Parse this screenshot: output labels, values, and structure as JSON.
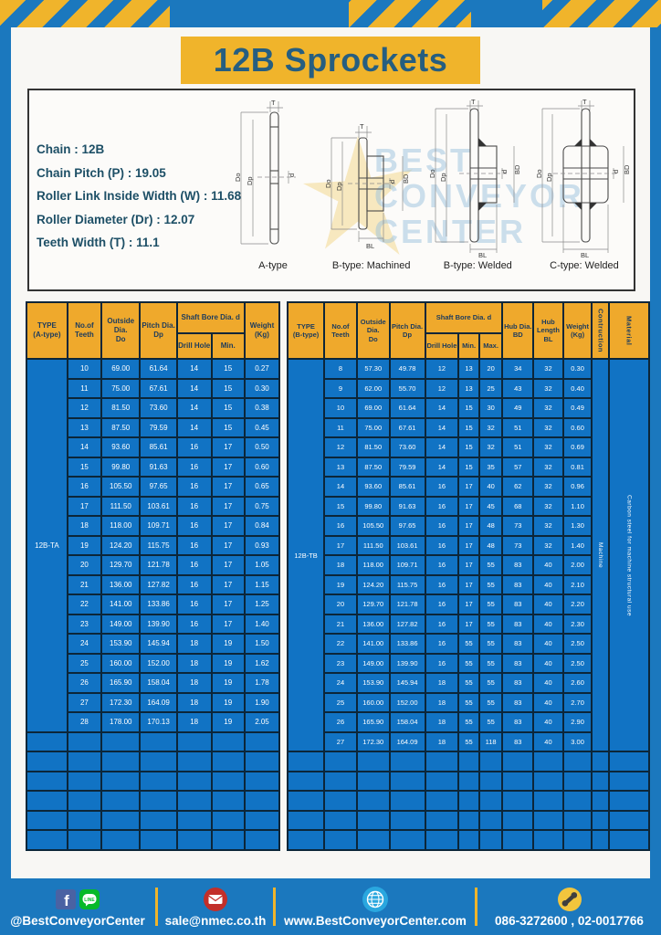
{
  "page": {
    "title": "12B Sprockets"
  },
  "colors": {
    "frame_blue": "#1b78be",
    "stripe_yellow": "#f0b42b",
    "header_yellow": "#efa92c",
    "cell_blue": "#1173c4",
    "grid_dark": "#0c2639",
    "title_text": "#265e80"
  },
  "specs": {
    "lines": [
      {
        "label": "Chain",
        "value": "12B"
      },
      {
        "label": "Chain Pitch (P)",
        "value": "19.05"
      },
      {
        "label": "Roller Link Inside Width (W)",
        "value": "11.68"
      },
      {
        "label": "Roller Diameter (Dr)",
        "value": "12.07"
      },
      {
        "label": "Teeth Width (T)",
        "value": "11.1"
      }
    ]
  },
  "watermark": {
    "lines": [
      "BEST",
      "CONVEYOR",
      "CENTER"
    ]
  },
  "diagrams": {
    "labels": [
      "A-type",
      "B-type: Machined",
      "B-type: Welded",
      "C-type: Welded"
    ],
    "dims": {
      "t": "T",
      "do": "Do",
      "dp": "Dp",
      "d": "d",
      "bd": "BD",
      "bl": "BL"
    }
  },
  "table_a": {
    "headers": {
      "type": "TYPE\n(A-type)",
      "teeth": "No.of\nTeeth",
      "outside": "Outside\nDia.\nDo",
      "pitch": "Pitch Dia.\nDp",
      "shaft_bore": "Shaft Bore Dia. d",
      "drill": "Drill Hole",
      "min": "Min.",
      "weight": "Weight\n(Kg)"
    },
    "type_value": "12B-TA",
    "rows": [
      [
        "10",
        "69.00",
        "61.64",
        "14",
        "15",
        "0.27"
      ],
      [
        "11",
        "75.00",
        "67.61",
        "14",
        "15",
        "0.30"
      ],
      [
        "12",
        "81.50",
        "73.60",
        "14",
        "15",
        "0.38"
      ],
      [
        "13",
        "87.50",
        "79.59",
        "14",
        "15",
        "0.45"
      ],
      [
        "14",
        "93.60",
        "85.61",
        "16",
        "17",
        "0.50"
      ],
      [
        "15",
        "99.80",
        "91.63",
        "16",
        "17",
        "0.60"
      ],
      [
        "16",
        "105.50",
        "97.65",
        "16",
        "17",
        "0.65"
      ],
      [
        "17",
        "111.50",
        "103.61",
        "16",
        "17",
        "0.75"
      ],
      [
        "18",
        "118.00",
        "109.71",
        "16",
        "17",
        "0.84"
      ],
      [
        "19",
        "124.20",
        "115.75",
        "16",
        "17",
        "0.93"
      ],
      [
        "20",
        "129.70",
        "121.78",
        "16",
        "17",
        "1.05"
      ],
      [
        "21",
        "136.00",
        "127.82",
        "16",
        "17",
        "1.15"
      ],
      [
        "22",
        "141.00",
        "133.86",
        "16",
        "17",
        "1.25"
      ],
      [
        "23",
        "149.00",
        "139.90",
        "16",
        "17",
        "1.40"
      ],
      [
        "24",
        "153.90",
        "145.94",
        "18",
        "19",
        "1.50"
      ],
      [
        "25",
        "160.00",
        "152.00",
        "18",
        "19",
        "1.62"
      ],
      [
        "26",
        "165.90",
        "158.04",
        "18",
        "19",
        "1.78"
      ],
      [
        "27",
        "172.30",
        "164.09",
        "18",
        "19",
        "1.90"
      ],
      [
        "28",
        "178.00",
        "170.13",
        "18",
        "19",
        "2.05"
      ]
    ],
    "empty_rows": 6
  },
  "table_b": {
    "headers": {
      "type": "TYPE\n(B-type)",
      "teeth": "No.of\nTeeth",
      "outside": "Outside\nDia.\nDo",
      "pitch": "Pitch Dia.\nDp",
      "shaft_bore": "Shaft Bore Dia. d",
      "drill": "Drill Hole",
      "min": "Min.",
      "max": "Max.",
      "hub_dia": "Hub Dia.\nBD",
      "hub_length": "Hub\nLength\nBL",
      "weight": "Weight\n(Kg)",
      "construction": "Contruction",
      "material": "Material"
    },
    "type_value": "12B-TB",
    "construction_value": "Machine",
    "material_value": "Carbon steel for machine structural use",
    "rows": [
      [
        "8",
        "57.30",
        "49.78",
        "12",
        "13",
        "20",
        "34",
        "32",
        "0.30"
      ],
      [
        "9",
        "62.00",
        "55.70",
        "12",
        "13",
        "25",
        "43",
        "32",
        "0.40"
      ],
      [
        "10",
        "69.00",
        "61.64",
        "14",
        "15",
        "30",
        "49",
        "32",
        "0.49"
      ],
      [
        "11",
        "75.00",
        "67.61",
        "14",
        "15",
        "32",
        "51",
        "32",
        "0.60"
      ],
      [
        "12",
        "81.50",
        "73.60",
        "14",
        "15",
        "32",
        "51",
        "32",
        "0.69"
      ],
      [
        "13",
        "87.50",
        "79.59",
        "14",
        "15",
        "35",
        "57",
        "32",
        "0.81"
      ],
      [
        "14",
        "93.60",
        "85.61",
        "16",
        "17",
        "40",
        "62",
        "32",
        "0.96"
      ],
      [
        "15",
        "99.80",
        "91.63",
        "16",
        "17",
        "45",
        "68",
        "32",
        "1.10"
      ],
      [
        "16",
        "105.50",
        "97.65",
        "16",
        "17",
        "48",
        "73",
        "32",
        "1.30"
      ],
      [
        "17",
        "111.50",
        "103.61",
        "16",
        "17",
        "48",
        "73",
        "32",
        "1.40"
      ],
      [
        "18",
        "118.00",
        "109.71",
        "16",
        "17",
        "55",
        "83",
        "40",
        "2.00"
      ],
      [
        "19",
        "124.20",
        "115.75",
        "16",
        "17",
        "55",
        "83",
        "40",
        "2.10"
      ],
      [
        "20",
        "129.70",
        "121.78",
        "16",
        "17",
        "55",
        "83",
        "40",
        "2.20"
      ],
      [
        "21",
        "136.00",
        "127.82",
        "16",
        "17",
        "55",
        "83",
        "40",
        "2.30"
      ],
      [
        "22",
        "141.00",
        "133.86",
        "16",
        "55",
        "55",
        "83",
        "40",
        "2.50"
      ],
      [
        "23",
        "149.00",
        "139.90",
        "16",
        "55",
        "55",
        "83",
        "40",
        "2.50"
      ],
      [
        "24",
        "153.90",
        "145.94",
        "18",
        "55",
        "55",
        "83",
        "40",
        "2.60"
      ],
      [
        "25",
        "160.00",
        "152.00",
        "18",
        "55",
        "55",
        "83",
        "40",
        "2.70"
      ],
      [
        "26",
        "165.90",
        "158.04",
        "18",
        "55",
        "55",
        "83",
        "40",
        "2.90"
      ],
      [
        "27",
        "172.30",
        "164.09",
        "18",
        "55",
        "118",
        "83",
        "40",
        "3.00"
      ]
    ],
    "empty_rows": 5
  },
  "footer": {
    "sections": [
      {
        "icons": [
          "facebook-icon",
          "line-icon"
        ],
        "text": "@BestConveyorCenter"
      },
      {
        "icons": [
          "mail-icon"
        ],
        "text": "sale@nmec.co.th"
      },
      {
        "icons": [
          "globe-icon"
        ],
        "text": "www.BestConveyorCenter.com"
      },
      {
        "icons": [
          "phone-icon"
        ],
        "text": "086-3272600 , 02-0017766"
      }
    ]
  }
}
